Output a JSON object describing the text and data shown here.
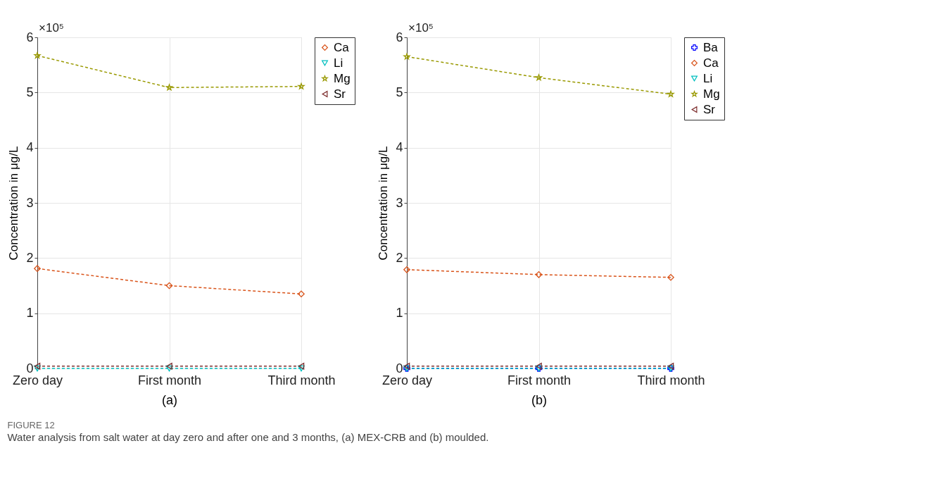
{
  "chart_data": [
    {
      "type": "line",
      "xlabel": "(a)",
      "ylabel": "Concentration in μg/L",
      "categories": [
        "Zero day",
        "First month",
        "Third month"
      ],
      "series": [
        {
          "name": "Ca",
          "color": "#d95319",
          "marker": "diamond",
          "values": [
            1.81,
            1.5,
            1.35
          ]
        },
        {
          "name": "Li",
          "color": "#00bfbf",
          "marker": "triangle-down",
          "values": [
            0,
            0,
            0
          ]
        },
        {
          "name": "Mg",
          "color": "#999900",
          "marker": "star",
          "values": [
            5.67,
            5.09,
            5.11
          ]
        },
        {
          "name": "Sr",
          "color": "#7e2f2f",
          "marker": "triangle-left",
          "values": [
            0.04,
            0.04,
            0.04
          ]
        }
      ],
      "ylim": [
        0,
        6
      ],
      "yticks": [
        0,
        1,
        2,
        3,
        4,
        5,
        6
      ],
      "grid": true,
      "legend": "right",
      "line_style": "dashed",
      "annotations": [
        "×10⁵",
        "FIGURE 12",
        "Water analysis from salt water at day zero and after one and 3 months, (a) MEX-CRB and (b) moulded."
      ]
    },
    {
      "type": "line",
      "xlabel": "(b)",
      "ylabel": "Concentration in μg/L",
      "categories": [
        "Zero day",
        "First month",
        "Third month"
      ],
      "series": [
        {
          "name": "Ba",
          "color": "#0000ff",
          "marker": "cross",
          "values": [
            0,
            0,
            0
          ]
        },
        {
          "name": "Ca",
          "color": "#d95319",
          "marker": "diamond",
          "values": [
            1.79,
            1.7,
            1.65
          ]
        },
        {
          "name": "Li",
          "color": "#00bfbf",
          "marker": "triangle-down",
          "values": [
            0,
            0,
            0
          ]
        },
        {
          "name": "Mg",
          "color": "#999900",
          "marker": "star",
          "values": [
            5.65,
            5.27,
            4.97
          ]
        },
        {
          "name": "Sr",
          "color": "#7e2f2f",
          "marker": "triangle-left",
          "values": [
            0.04,
            0.04,
            0.04
          ]
        }
      ],
      "ylim": [
        0,
        6
      ],
      "yticks": [
        0,
        1,
        2,
        3,
        4,
        5,
        6
      ],
      "grid": true,
      "legend": "right",
      "line_style": "dashed",
      "annotations": [
        "×10⁵"
      ]
    }
  ]
}
